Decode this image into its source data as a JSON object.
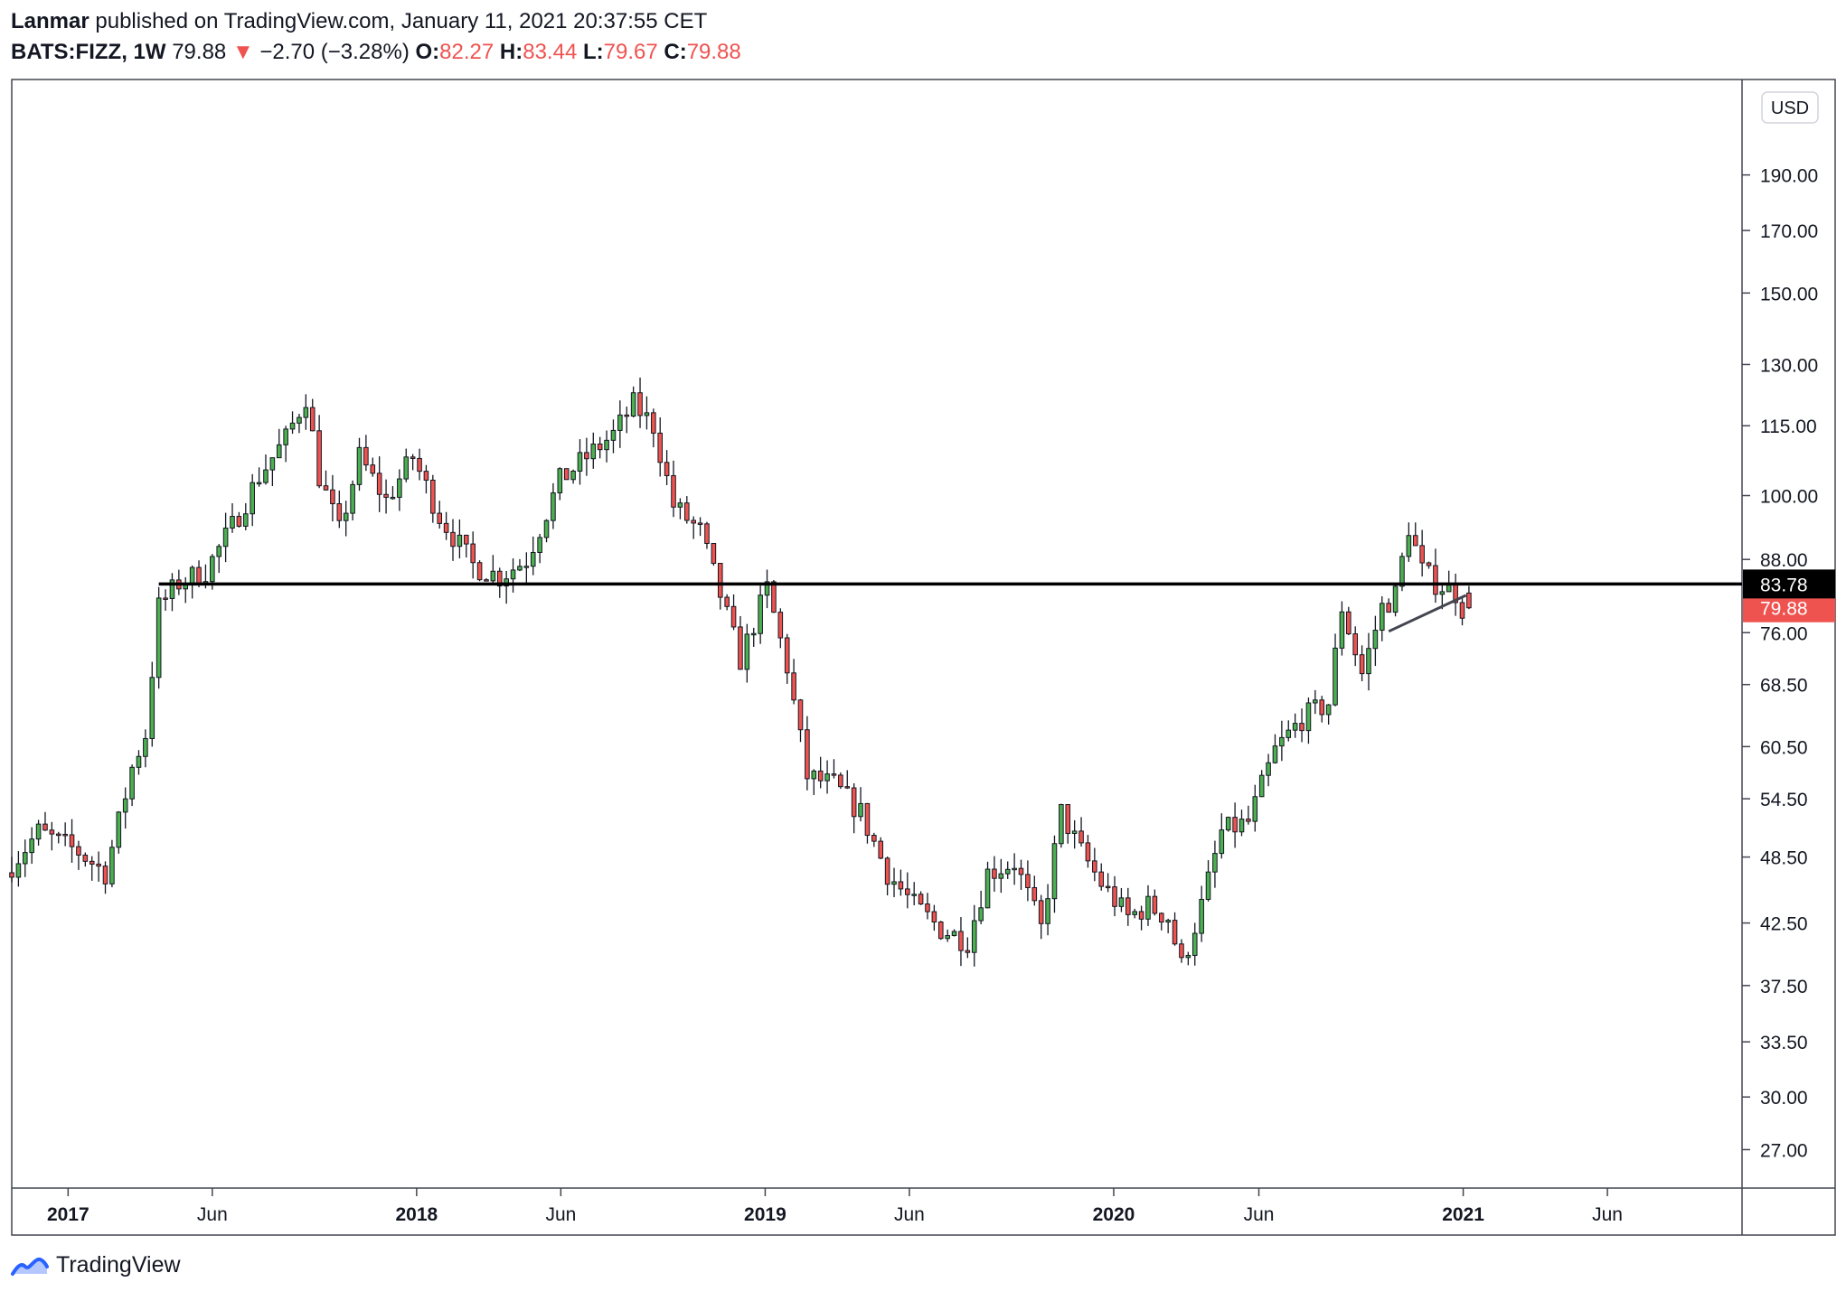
{
  "header": {
    "author": "Lanmar",
    "published_text": "published on TradingView.com, January 11, 2021 20:37:55 CET",
    "symbol": "BATS:FIZZ, 1W",
    "last": "79.88",
    "change": "−2.70 (−3.28%)",
    "open_label": "O:",
    "open": "82.27",
    "high_label": "H:",
    "high": "83.44",
    "low_label": "L:",
    "low": "79.67",
    "close_label": "C:",
    "close": "79.88"
  },
  "footer": {
    "brand": "TradingView",
    "logo_icon": "tradingview-logo-icon"
  },
  "colors": {
    "up": "#4caf50",
    "down": "#ef5350",
    "wick": "#131722",
    "level": "#000000"
  },
  "chart_data": {
    "type": "candlestick",
    "currency": "USD",
    "y_scale": "log",
    "ylim": [
      25.0,
      230.0
    ],
    "y_ticks": [
      "190.00",
      "170.00",
      "150.00",
      "130.00",
      "115.00",
      "100.00",
      "88.00",
      "76.00",
      "68.50",
      "60.50",
      "54.50",
      "48.50",
      "42.50",
      "37.50",
      "33.50",
      "30.00",
      "27.00"
    ],
    "x_ticks": [
      {
        "label": "2017",
        "date": "2017-01-01",
        "bold": true
      },
      {
        "label": "Jun",
        "date": "2017-06-01",
        "bold": false
      },
      {
        "label": "2018",
        "date": "2018-01-01",
        "bold": true
      },
      {
        "label": "Jun",
        "date": "2018-06-01",
        "bold": false
      },
      {
        "label": "2019",
        "date": "2019-01-01",
        "bold": true
      },
      {
        "label": "Jun",
        "date": "2019-06-01",
        "bold": false
      },
      {
        "label": "2020",
        "date": "2020-01-01",
        "bold": true
      },
      {
        "label": "Jun",
        "date": "2020-06-01",
        "bold": false
      },
      {
        "label": "2021",
        "date": "2021-01-01",
        "bold": true
      },
      {
        "label": "Jun",
        "date": "2021-06-01",
        "bold": false
      }
    ],
    "x_range": [
      "2016-11-03",
      "2021-10-20"
    ],
    "horizontal_level": {
      "value": 83.78,
      "label": "83.78",
      "start_date": "2017-04-06"
    },
    "last_price": {
      "value": 79.88,
      "label": "79.88"
    },
    "trendline": {
      "start": [
        "2020-10-15",
        76.2
      ],
      "end": [
        "2021-01-04",
        81.9
      ]
    },
    "anchors": [
      [
        "2016-11-03",
        47
      ],
      [
        "2016-12-08",
        51
      ],
      [
        "2017-01-19",
        49
      ],
      [
        "2017-02-16",
        47
      ],
      [
        "2017-03-02",
        52
      ],
      [
        "2017-03-16",
        58
      ],
      [
        "2017-03-30",
        62
      ],
      [
        "2017-04-13",
        80
      ],
      [
        "2017-05-04",
        84
      ],
      [
        "2017-06-01",
        86
      ],
      [
        "2017-06-29",
        94
      ],
      [
        "2017-07-27",
        104
      ],
      [
        "2017-08-24",
        112
      ],
      [
        "2017-09-14",
        122
      ],
      [
        "2017-09-28",
        104
      ],
      [
        "2017-10-19",
        93
      ],
      [
        "2017-11-09",
        108
      ],
      [
        "2017-12-07",
        99
      ],
      [
        "2018-01-04",
        108
      ],
      [
        "2018-02-01",
        96
      ],
      [
        "2018-03-08",
        87
      ],
      [
        "2018-04-05",
        85
      ],
      [
        "2018-05-03",
        88
      ],
      [
        "2018-06-07",
        103
      ],
      [
        "2018-07-05",
        108
      ],
      [
        "2018-08-02",
        113
      ],
      [
        "2018-08-23",
        120
      ],
      [
        "2018-09-13",
        115
      ],
      [
        "2018-10-04",
        98
      ],
      [
        "2018-11-01",
        93
      ],
      [
        "2018-11-22",
        82
      ],
      [
        "2018-12-13",
        72
      ],
      [
        "2019-01-10",
        83
      ],
      [
        "2019-01-31",
        71
      ],
      [
        "2019-02-21",
        57
      ],
      [
        "2019-03-21",
        56
      ],
      [
        "2019-04-18",
        53
      ],
      [
        "2019-05-16",
        47
      ],
      [
        "2019-06-13",
        44
      ],
      [
        "2019-07-11",
        42
      ],
      [
        "2019-08-08",
        41
      ],
      [
        "2019-08-29",
        47
      ],
      [
        "2019-09-26",
        48
      ],
      [
        "2019-10-24",
        42
      ],
      [
        "2019-11-14",
        53
      ],
      [
        "2019-12-05",
        49
      ],
      [
        "2019-12-26",
        46
      ],
      [
        "2020-01-23",
        43
      ],
      [
        "2020-02-13",
        44
      ],
      [
        "2020-03-05",
        43
      ],
      [
        "2020-03-19",
        39
      ],
      [
        "2020-04-09",
        44
      ],
      [
        "2020-04-30",
        51
      ],
      [
        "2020-05-28",
        52
      ],
      [
        "2020-06-25",
        60
      ],
      [
        "2020-07-23",
        64
      ],
      [
        "2020-08-20",
        66
      ],
      [
        "2020-09-03",
        80
      ],
      [
        "2020-09-24",
        70
      ],
      [
        "2020-10-15",
        80
      ],
      [
        "2020-10-29",
        82
      ],
      [
        "2020-11-12",
        94
      ],
      [
        "2020-11-26",
        86
      ],
      [
        "2020-12-10",
        84
      ],
      [
        "2020-12-31",
        82.3
      ],
      [
        "2021-01-07",
        79.88
      ]
    ]
  }
}
